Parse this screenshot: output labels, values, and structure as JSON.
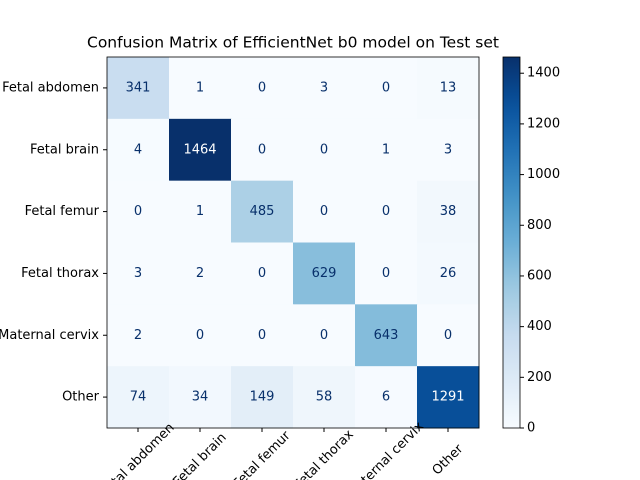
{
  "chart_data": {
    "type": "heatmap",
    "title": "Confusion Matrix of EfficientNet b0 model  on Test set",
    "categories": [
      "Fetal abdomen",
      "Fetal brain",
      "Fetal femur",
      "Fetal thorax",
      "Maternal cervix",
      "Other"
    ],
    "values": [
      [
        341,
        1,
        0,
        3,
        0,
        13
      ],
      [
        4,
        1464,
        0,
        0,
        1,
        3
      ],
      [
        0,
        1,
        485,
        0,
        0,
        38
      ],
      [
        3,
        2,
        0,
        629,
        0,
        26
      ],
      [
        2,
        0,
        0,
        0,
        643,
        0
      ],
      [
        74,
        34,
        149,
        58,
        6,
        1291
      ]
    ],
    "colormap": "Blues",
    "clim": [
      0,
      1464
    ],
    "cticks": [
      0,
      200,
      400,
      600,
      800,
      1000,
      1200,
      1400
    ]
  }
}
